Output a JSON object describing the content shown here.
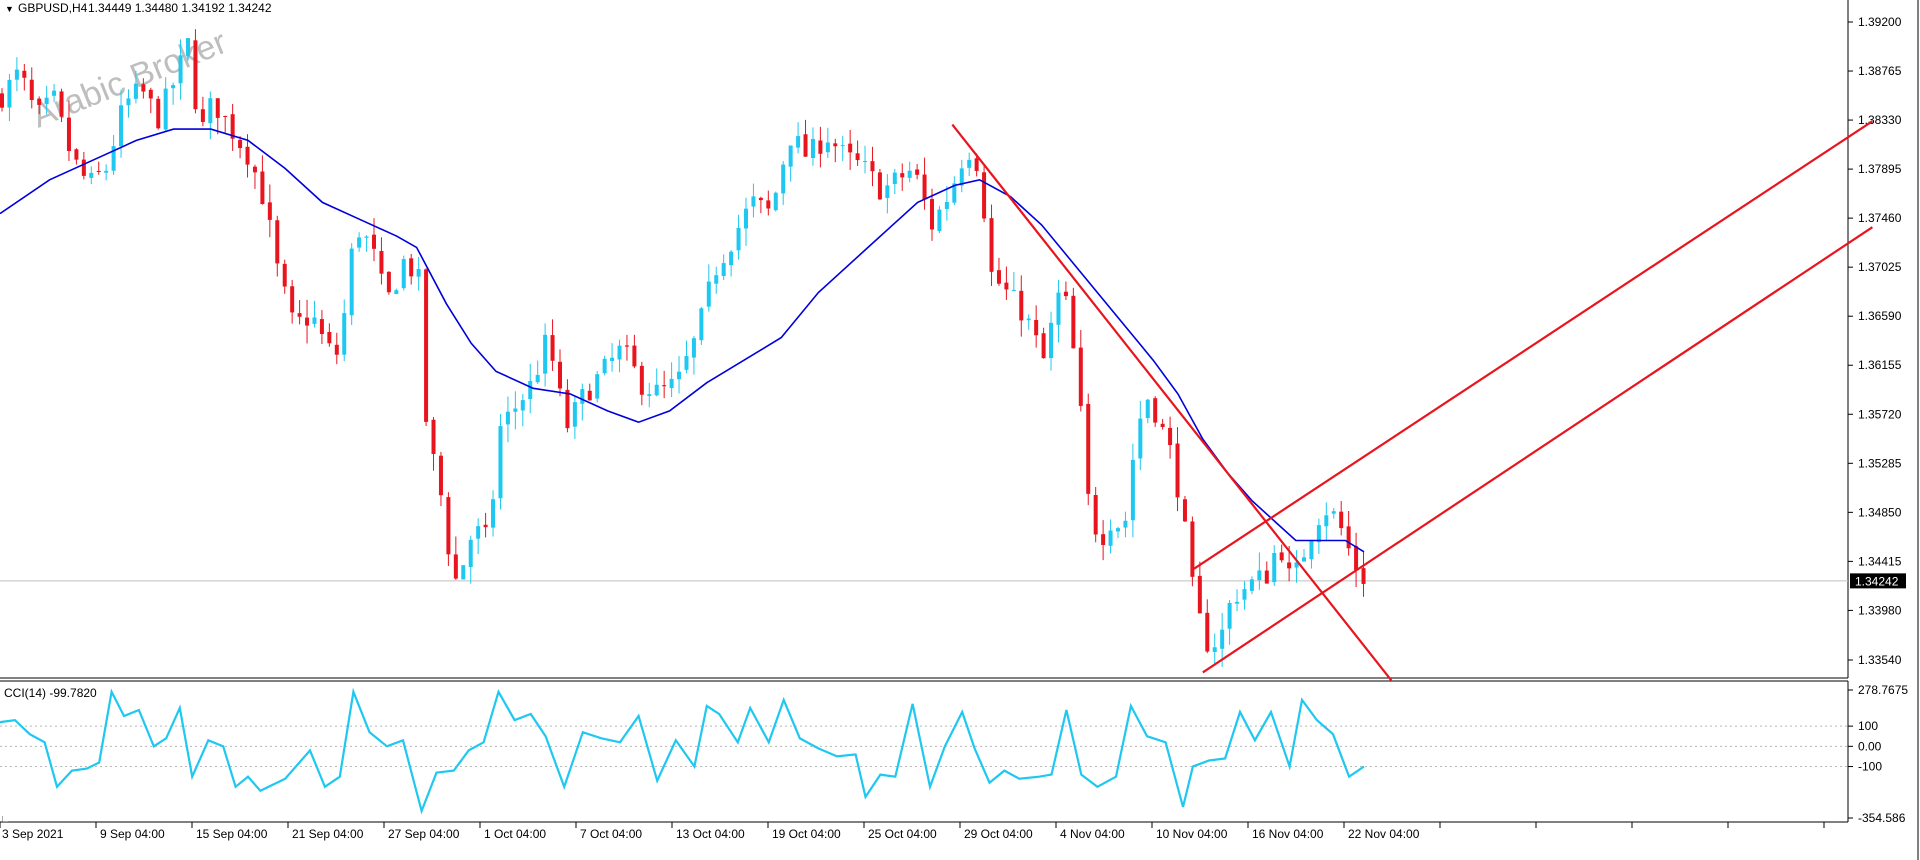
{
  "header": {
    "symbol": "GBPUSD,H4",
    "ohlc": "1.34449 1.34480 1.34192 1.34242"
  },
  "watermark": "Arabic Broker",
  "price_axis": {
    "ticks": [
      "1.39200",
      "1.38765",
      "1.38330",
      "1.37895",
      "1.37460",
      "1.37025",
      "1.36590",
      "1.36155",
      "1.35720",
      "1.35285",
      "1.34850",
      "1.34415",
      "1.33980",
      "1.33540"
    ],
    "current_label": "1.34242"
  },
  "indicator": {
    "label": "CCI(14) -99.7820",
    "ticks": [
      "278.7675",
      "100",
      "0.00",
      "-100",
      "-354.586"
    ]
  },
  "time_axis": {
    "labels": [
      "3 Sep 2021",
      "9 Sep 04:00",
      "15 Sep 04:00",
      "21 Sep 04:00",
      "27 Sep 04:00",
      "1 Oct 04:00",
      "7 Oct 04:00",
      "13 Oct 04:00",
      "19 Oct 04:00",
      "25 Oct 04:00",
      "29 Oct 04:00",
      "4 Nov 04:00",
      "10 Nov 04:00",
      "16 Nov 04:00",
      "22 Nov 04:00"
    ]
  },
  "colors": {
    "bull": "#1ec8f0",
    "bear": "#e8141e",
    "ma": "#0000dd",
    "trend": "#e8141e",
    "cci": "#1ec8f0",
    "current_bg": "#000000"
  },
  "chart_data": {
    "type": "candlestick",
    "symbol": "GBPUSD",
    "timeframe": "H4",
    "price_range": [
      1.3335,
      1.3935
    ],
    "current_price": 1.34242,
    "last_bar_ohlc": [
      1.34449,
      1.3448,
      1.34192,
      1.34242
    ],
    "price_path": [
      [
        0,
        1.3855
      ],
      [
        14,
        1.3875
      ],
      [
        28,
        1.3835
      ],
      [
        42,
        1.385
      ],
      [
        56,
        1.38
      ],
      [
        70,
        1.3775
      ],
      [
        84,
        1.379
      ],
      [
        98,
        1.3845
      ],
      [
        112,
        1.386
      ],
      [
        126,
        1.3835
      ],
      [
        140,
        1.387
      ],
      [
        150,
        1.39
      ],
      [
        160,
        1.382
      ],
      [
        170,
        1.385
      ],
      [
        185,
        1.3825
      ],
      [
        200,
        1.38
      ],
      [
        212,
        1.376
      ],
      [
        222,
        1.37
      ],
      [
        235,
        1.365
      ],
      [
        250,
        1.366
      ],
      [
        262,
        1.363
      ],
      [
        272,
        1.3625
      ],
      [
        285,
        1.374
      ],
      [
        298,
        1.372
      ],
      [
        310,
        1.367
      ],
      [
        325,
        1.371
      ],
      [
        336,
        1.369
      ],
      [
        340,
        1.358
      ],
      [
        348,
        1.353
      ],
      [
        356,
        1.349
      ],
      [
        364,
        1.342
      ],
      [
        372,
        1.344
      ],
      [
        380,
        1.347
      ],
      [
        392,
        1.346
      ],
      [
        402,
        1.356
      ],
      [
        415,
        1.358
      ],
      [
        428,
        1.36
      ],
      [
        440,
        1.364
      ],
      [
        455,
        1.356
      ],
      [
        470,
        1.359
      ],
      [
        485,
        1.361
      ],
      [
        500,
        1.363
      ],
      [
        515,
        1.36
      ],
      [
        530,
        1.359
      ],
      [
        545,
        1.36
      ],
      [
        560,
        1.364
      ],
      [
        575,
        1.37
      ],
      [
        590,
        1.373
      ],
      [
        605,
        1.376
      ],
      [
        620,
        1.375
      ],
      [
        635,
        1.382
      ],
      [
        650,
        1.38
      ],
      [
        665,
        1.382
      ],
      [
        680,
        1.38
      ],
      [
        695,
        1.379
      ],
      [
        710,
        1.377
      ],
      [
        722,
        1.378
      ],
      [
        735,
        1.379
      ],
      [
        750,
        1.374
      ],
      [
        765,
        1.377
      ],
      [
        778,
        1.381
      ],
      [
        790,
        1.379
      ],
      [
        795,
        1.37
      ],
      [
        810,
        1.368
      ],
      [
        825,
        1.366
      ],
      [
        840,
        1.362
      ],
      [
        855,
        1.369
      ],
      [
        868,
        1.36
      ],
      [
        875,
        1.35
      ],
      [
        885,
        1.346
      ],
      [
        895,
        1.348
      ],
      [
        905,
        1.347
      ],
      [
        915,
        1.356
      ],
      [
        925,
        1.359
      ],
      [
        935,
        1.356
      ],
      [
        945,
        1.353
      ],
      [
        955,
        1.346
      ],
      [
        962,
        1.34
      ],
      [
        972,
        1.337
      ],
      [
        982,
        1.337
      ],
      [
        992,
        1.341
      ],
      [
        1005,
        1.342
      ],
      [
        1020,
        1.343
      ],
      [
        1030,
        1.346
      ],
      [
        1040,
        1.342
      ],
      [
        1050,
        1.345
      ],
      [
        1060,
        1.348
      ],
      [
        1070,
        1.349
      ],
      [
        1080,
        1.347
      ],
      [
        1090,
        1.344
      ],
      [
        1100,
        1.3424
      ]
    ],
    "ma_path": [
      [
        0,
        1.375
      ],
      [
        40,
        1.378
      ],
      [
        80,
        1.38
      ],
      [
        110,
        1.3815
      ],
      [
        140,
        1.3825
      ],
      [
        170,
        1.3825
      ],
      [
        200,
        1.3815
      ],
      [
        230,
        1.379
      ],
      [
        260,
        1.376
      ],
      [
        290,
        1.3745
      ],
      [
        320,
        1.373
      ],
      [
        336,
        1.372
      ],
      [
        360,
        1.367
      ],
      [
        380,
        1.3635
      ],
      [
        400,
        1.361
      ],
      [
        430,
        1.3595
      ],
      [
        460,
        1.359
      ],
      [
        490,
        1.3575
      ],
      [
        515,
        1.3565
      ],
      [
        540,
        1.3575
      ],
      [
        570,
        1.36
      ],
      [
        600,
        1.362
      ],
      [
        630,
        1.364
      ],
      [
        660,
        1.368
      ],
      [
        700,
        1.372
      ],
      [
        740,
        1.376
      ],
      [
        770,
        1.3775
      ],
      [
        790,
        1.378
      ],
      [
        815,
        1.3765
      ],
      [
        840,
        1.374
      ],
      [
        870,
        1.37
      ],
      [
        900,
        1.366
      ],
      [
        930,
        1.362
      ],
      [
        950,
        1.359
      ],
      [
        970,
        1.355
      ],
      [
        990,
        1.352
      ],
      [
        1010,
        1.3495
      ],
      [
        1030,
        1.3475
      ],
      [
        1045,
        1.346
      ],
      [
        1065,
        1.346
      ],
      [
        1085,
        1.346
      ],
      [
        1100,
        1.345
      ]
    ],
    "trendlines": [
      {
        "from": [
          768,
          1.3829
        ],
        "to": [
          1122,
          1.3336
        ]
      },
      {
        "from": [
          963,
          1.3435
        ],
        "to": [
          1510,
          1.3832
        ]
      },
      {
        "from": [
          970,
          1.3343
        ],
        "to": [
          1510,
          1.3738
        ]
      }
    ],
    "cci": {
      "name": "CCI(14)",
      "last_value": -99.782,
      "range": [
        -354.586,
        278.7675
      ],
      "levels": [
        100,
        -100
      ],
      "values": [
        [
          0,
          120
        ],
        [
          12,
          130
        ],
        [
          24,
          60
        ],
        [
          36,
          20
        ],
        [
          46,
          -200
        ],
        [
          58,
          -120
        ],
        [
          70,
          -110
        ],
        [
          80,
          -80
        ],
        [
          90,
          270
        ],
        [
          100,
          150
        ],
        [
          112,
          180
        ],
        [
          124,
          0
        ],
        [
          134,
          40
        ],
        [
          145,
          190
        ],
        [
          155,
          -150
        ],
        [
          168,
          30
        ],
        [
          180,
          0
        ],
        [
          190,
          -200
        ],
        [
          200,
          -150
        ],
        [
          210,
          -220
        ],
        [
          230,
          -160
        ],
        [
          250,
          -20
        ],
        [
          262,
          -200
        ],
        [
          274,
          -150
        ],
        [
          285,
          270
        ],
        [
          298,
          70
        ],
        [
          312,
          0
        ],
        [
          325,
          30
        ],
        [
          340,
          -320
        ],
        [
          352,
          -130
        ],
        [
          366,
          -120
        ],
        [
          378,
          -20
        ],
        [
          390,
          20
        ],
        [
          402,
          270
        ],
        [
          415,
          130
        ],
        [
          428,
          160
        ],
        [
          440,
          50
        ],
        [
          455,
          -200
        ],
        [
          470,
          70
        ],
        [
          485,
          40
        ],
        [
          500,
          20
        ],
        [
          515,
          150
        ],
        [
          530,
          -170
        ],
        [
          545,
          30
        ],
        [
          560,
          -100
        ],
        [
          570,
          200
        ],
        [
          580,
          160
        ],
        [
          595,
          20
        ],
        [
          605,
          190
        ],
        [
          620,
          20
        ],
        [
          632,
          230
        ],
        [
          645,
          40
        ],
        [
          660,
          -10
        ],
        [
          675,
          -50
        ],
        [
          690,
          -40
        ],
        [
          698,
          -250
        ],
        [
          710,
          -140
        ],
        [
          722,
          -150
        ],
        [
          736,
          210
        ],
        [
          750,
          -200
        ],
        [
          762,
          0
        ],
        [
          776,
          170
        ],
        [
          786,
          -10
        ],
        [
          798,
          -180
        ],
        [
          810,
          -120
        ],
        [
          822,
          -160
        ],
        [
          838,
          -150
        ],
        [
          848,
          -140
        ],
        [
          860,
          180
        ],
        [
          872,
          -140
        ],
        [
          885,
          -200
        ],
        [
          900,
          -150
        ],
        [
          912,
          200
        ],
        [
          925,
          50
        ],
        [
          940,
          20
        ],
        [
          954,
          -300
        ],
        [
          962,
          -100
        ],
        [
          975,
          -70
        ],
        [
          988,
          -60
        ],
        [
          1000,
          170
        ],
        [
          1012,
          30
        ],
        [
          1025,
          170
        ],
        [
          1040,
          -100
        ],
        [
          1050,
          230
        ],
        [
          1062,
          130
        ],
        [
          1075,
          60
        ],
        [
          1088,
          -150
        ],
        [
          1100,
          -100
        ]
      ]
    },
    "xlabels": [
      "3 Sep 2021",
      "9 Sep 04:00",
      "15 Sep 04:00",
      "21 Sep 04:00",
      "27 Sep 04:00",
      "1 Oct 04:00",
      "7 Oct 04:00",
      "13 Oct 04:00",
      "19 Oct 04:00",
      "25 Oct 04:00",
      "29 Oct 04:00",
      "4 Nov 04:00",
      "10 Nov 04:00",
      "16 Nov 04:00",
      "22 Nov 04:00"
    ]
  }
}
